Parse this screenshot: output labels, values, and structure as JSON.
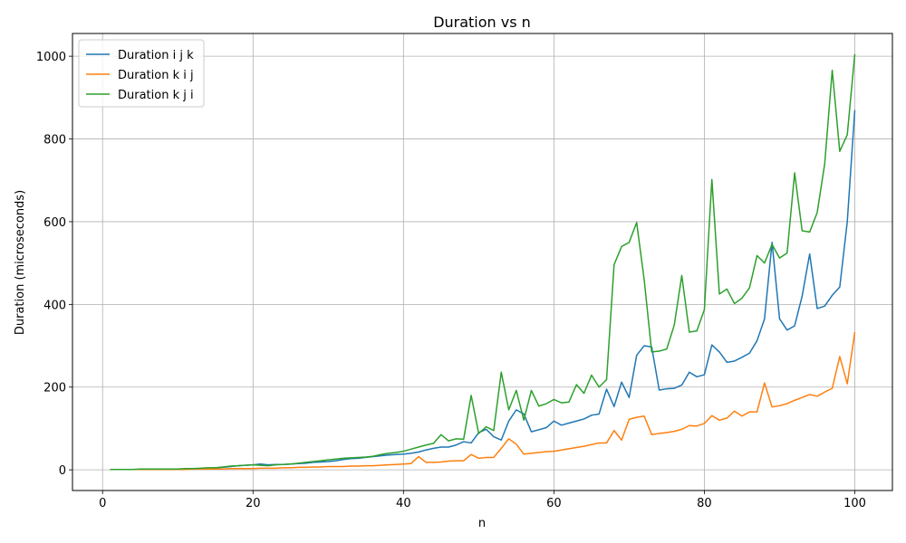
{
  "chart_data": {
    "type": "line",
    "title": "Duration vs n",
    "xlabel": "n",
    "ylabel": "Duration (microseconds)",
    "xlim": [
      -4,
      105
    ],
    "ylim": [
      -50,
      1055
    ],
    "x_ticks": [
      0,
      20,
      40,
      60,
      80,
      100
    ],
    "y_ticks": [
      0,
      200,
      400,
      600,
      800,
      1000
    ],
    "grid": true,
    "legend_position": "top-left",
    "x": [
      1,
      2,
      3,
      4,
      5,
      6,
      7,
      8,
      9,
      10,
      11,
      12,
      13,
      14,
      15,
      16,
      17,
      18,
      19,
      20,
      21,
      22,
      23,
      24,
      25,
      26,
      27,
      28,
      29,
      30,
      31,
      32,
      33,
      34,
      35,
      36,
      37,
      38,
      39,
      40,
      41,
      42,
      43,
      44,
      45,
      46,
      47,
      48,
      49,
      50,
      51,
      52,
      53,
      54,
      55,
      56,
      57,
      58,
      59,
      60,
      61,
      62,
      63,
      64,
      65,
      66,
      67,
      68,
      69,
      70,
      71,
      72,
      73,
      74,
      75,
      76,
      77,
      78,
      79,
      80,
      81,
      82,
      83,
      84,
      85,
      86,
      87,
      88,
      89,
      90,
      91,
      92,
      93,
      94,
      95,
      96,
      97,
      98,
      99,
      100
    ],
    "series": [
      {
        "name": "Duration i j k",
        "color": "#1f77b4",
        "values": [
          1,
          1,
          1,
          1,
          1,
          1,
          1,
          1,
          2,
          2,
          2,
          3,
          3,
          4,
          5,
          6,
          8,
          10,
          11,
          12,
          14,
          12,
          13,
          13,
          14,
          15,
          16,
          18,
          19,
          20,
          22,
          25,
          27,
          28,
          30,
          32,
          34,
          36,
          37,
          38,
          40,
          43,
          48,
          52,
          55,
          55,
          60,
          68,
          65,
          90,
          98,
          80,
          72,
          118,
          145,
          135,
          92,
          97,
          102,
          118,
          108,
          113,
          118,
          123,
          132,
          135,
          195,
          153,
          212,
          175,
          277,
          300,
          297,
          193,
          196,
          197,
          205,
          236,
          225,
          230,
          302,
          285,
          260,
          263,
          272,
          282,
          312,
          365,
          550,
          365,
          338,
          348,
          420,
          522,
          390,
          396,
          422,
          442,
          600,
          870
        ]
      },
      {
        "name": "Duration k i j",
        "color": "#ff7f0e",
        "values": [
          1,
          1,
          1,
          1,
          1,
          1,
          1,
          1,
          1,
          1,
          1,
          2,
          2,
          2,
          2,
          2,
          3,
          3,
          3,
          3,
          4,
          4,
          4,
          5,
          5,
          6,
          6,
          7,
          7,
          8,
          8,
          8,
          9,
          9,
          10,
          10,
          11,
          12,
          13,
          14,
          15,
          32,
          18,
          18,
          19,
          21,
          22,
          22,
          37,
          28,
          30,
          30,
          52,
          75,
          62,
          38,
          40,
          42,
          44,
          45,
          48,
          51,
          54,
          57,
          61,
          65,
          65,
          95,
          72,
          122,
          127,
          130,
          85,
          88,
          90,
          93,
          98,
          107,
          106,
          112,
          131,
          120,
          125,
          142,
          130,
          140,
          140,
          210,
          152,
          155,
          160,
          168,
          175,
          182,
          178,
          188,
          197,
          274,
          208,
          333
        ]
      },
      {
        "name": "Duration k j i",
        "color": "#2ca02c",
        "values": [
          1,
          1,
          1,
          1,
          2,
          2,
          2,
          2,
          2,
          2,
          3,
          3,
          4,
          5,
          5,
          7,
          9,
          10,
          11,
          12,
          11,
          10,
          12,
          13,
          14,
          16,
          18,
          20,
          22,
          24,
          26,
          28,
          29,
          30,
          31,
          33,
          37,
          40,
          42,
          45,
          50,
          55,
          60,
          64,
          85,
          70,
          75,
          74,
          180,
          88,
          104,
          95,
          236,
          145,
          192,
          120,
          192,
          154,
          160,
          170,
          162,
          164,
          206,
          185,
          229,
          200,
          218,
          496,
          540,
          550,
          598,
          460,
          285,
          287,
          292,
          350,
          470,
          333,
          336,
          387,
          702,
          425,
          437,
          402,
          415,
          440,
          518,
          500,
          545,
          512,
          524,
          718,
          578,
          575,
          622,
          740,
          966,
          770,
          810,
          1005
        ]
      }
    ]
  }
}
